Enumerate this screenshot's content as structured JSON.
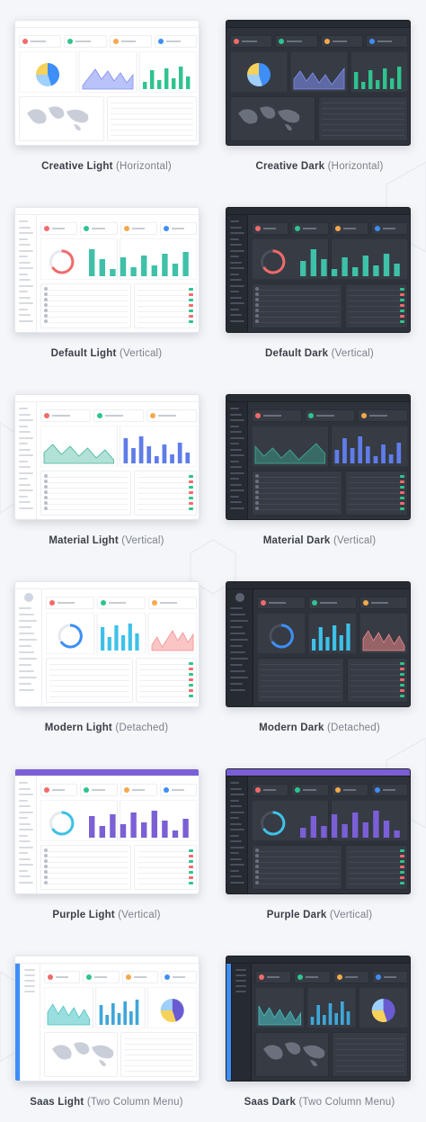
{
  "captions": [
    {
      "strong": "Creative Light",
      "sub": "(Horizontal)"
    },
    {
      "strong": "Creative Dark",
      "sub": "(Horizontal)"
    },
    {
      "strong": "Default Light",
      "sub": "(Vertical)"
    },
    {
      "strong": "Default Dark",
      "sub": "(Vertical)"
    },
    {
      "strong": "Material Light",
      "sub": "(Vertical)"
    },
    {
      "strong": "Material Dark",
      "sub": "(Vertical)"
    },
    {
      "strong": "Modern Light",
      "sub": "(Detached)"
    },
    {
      "strong": "Modern Dark",
      "sub": "(Detached)"
    },
    {
      "strong": "Purple Light",
      "sub": "(Vertical)"
    },
    {
      "strong": "Purple Dark",
      "sub": "(Vertical)"
    },
    {
      "strong": "Saas Light",
      "sub": "(Two Column Menu)"
    },
    {
      "strong": "Saas Dark",
      "sub": "(Two Column Menu)"
    }
  ],
  "colors": {
    "background": "#f5f6f9",
    "accent_blue": "#3e8ef7",
    "accent_green": "#2fc38e",
    "accent_teal": "#3ec1a8",
    "accent_purple": "#7b5fd6",
    "accent_red": "#f26a6a",
    "accent_orange": "#f7a84a"
  }
}
